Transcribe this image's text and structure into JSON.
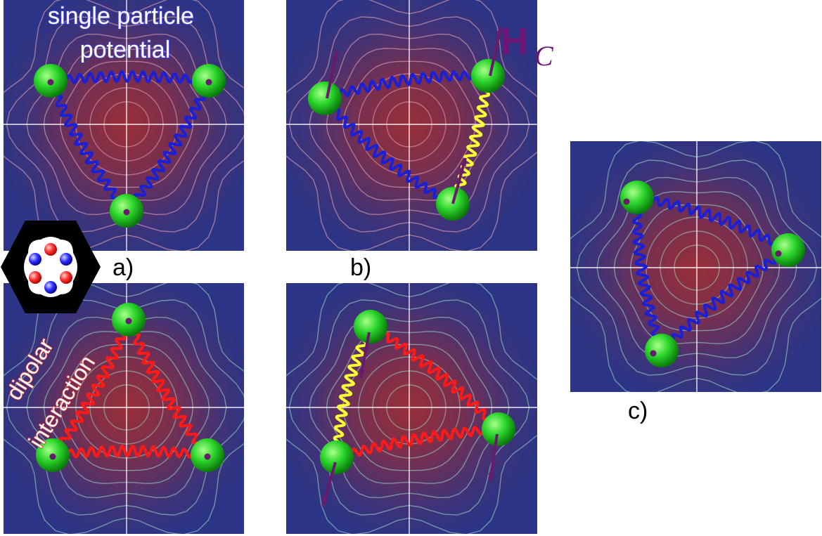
{
  "labels": {
    "a": "a)",
    "b": "b)",
    "c": "c)"
  },
  "annotations": {
    "single_particle_line1": "single particle",
    "single_particle_line2": "potential",
    "dipolar_line1": "dipolar",
    "dipolar_line2": "interaction",
    "hc_main": "H",
    "hc_sub": "C"
  },
  "colors": {
    "panel_bg": "#2e3585",
    "center_glow": "#8e2f3a",
    "contour_warm": "#e7a6b4",
    "contour_cool": "#9ad6c3",
    "spring_blue": "#1b1fd6",
    "spring_red": "#ff1a1a",
    "spring_yellow": "#ffff33",
    "particle": "#2bd62b",
    "spin_arrow": "#6a1a6a",
    "hc_color": "#6d1675"
  },
  "icons": {
    "hexagon_molecule": "hexagon-molecule-icon"
  }
}
